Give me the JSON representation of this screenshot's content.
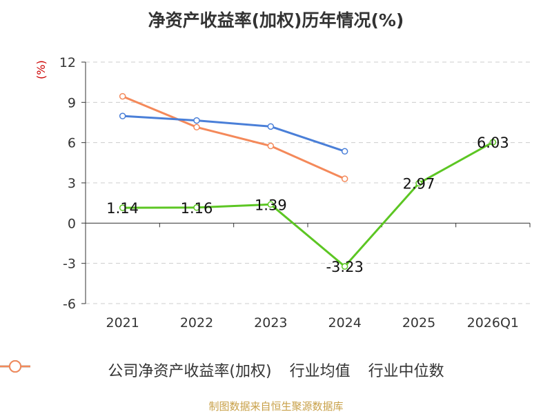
{
  "chart_data": {
    "type": "line",
    "title": "净资产收益率(加权)历年情况(%)",
    "ylabel": "(%)",
    "categories": [
      "2021",
      "2022",
      "2023",
      "2024",
      "2025",
      "2026Q1"
    ],
    "ylim": [
      -6,
      12
    ],
    "yticks": [
      -6,
      -3,
      0,
      3,
      6,
      9,
      12
    ],
    "grid": true,
    "legend": "bottom",
    "series": [
      {
        "name": "公司净资产收益率(加权)",
        "color": "#5cc623",
        "values": [
          1.14,
          1.16,
          1.39,
          -3.23,
          2.97,
          6.03
        ],
        "labels": [
          "1.14",
          "1.16",
          "1.39",
          "-3.23",
          "2.97",
          "6.03"
        ]
      },
      {
        "name": "行业均值",
        "color": "#4a7fd8",
        "values": [
          7.98,
          7.65,
          7.2,
          5.35,
          null,
          null
        ]
      },
      {
        "name": "行业中位数",
        "color": "#f4895a",
        "values": [
          9.45,
          7.15,
          5.75,
          3.3,
          null,
          null
        ]
      }
    ]
  },
  "footer": {
    "source": "制图数据来自恒生聚源数据库"
  }
}
